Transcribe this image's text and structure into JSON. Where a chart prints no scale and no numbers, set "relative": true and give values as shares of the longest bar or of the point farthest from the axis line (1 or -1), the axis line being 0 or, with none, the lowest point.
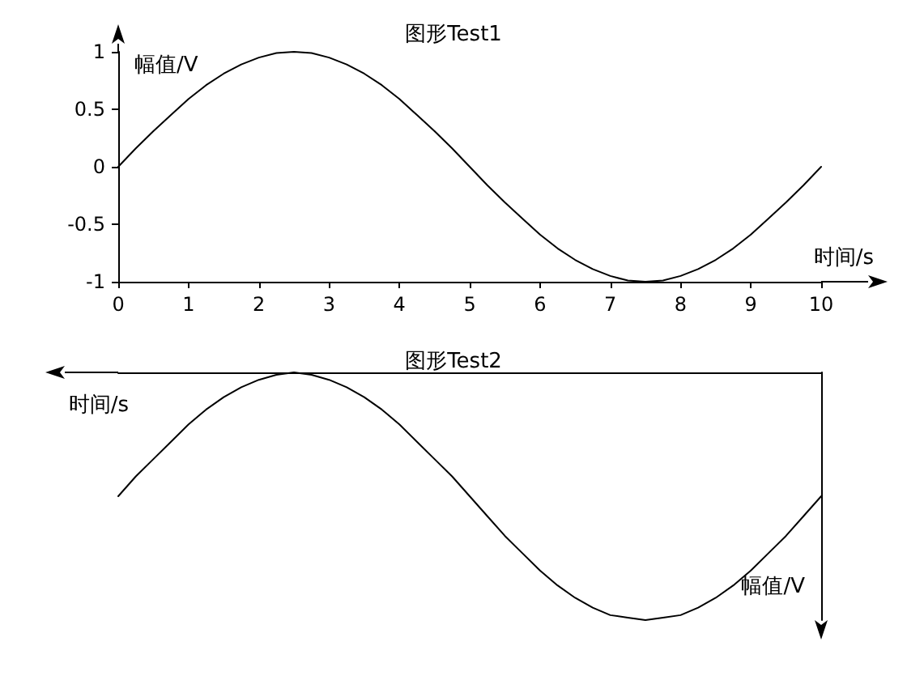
{
  "chart_data": [
    {
      "type": "line",
      "title": "图形Test1",
      "xlabel": "时间/s",
      "ylabel": "幅值/V",
      "color": "#000000",
      "marker": "none",
      "x": [
        0,
        0.25,
        0.5,
        0.75,
        1,
        1.25,
        1.5,
        1.75,
        2,
        2.25,
        2.5,
        2.75,
        3,
        3.25,
        3.5,
        3.75,
        4,
        4.25,
        4.5,
        4.75,
        5,
        5.25,
        5.5,
        5.75,
        6,
        6.25,
        6.5,
        6.75,
        7,
        7.25,
        7.5,
        7.75,
        8,
        8.25,
        8.5,
        8.75,
        9,
        9.25,
        9.5,
        9.75,
        10
      ],
      "values": [
        0,
        0.16,
        0.31,
        0.45,
        0.59,
        0.71,
        0.81,
        0.89,
        0.95,
        0.99,
        1,
        0.99,
        0.95,
        0.89,
        0.81,
        0.71,
        0.59,
        0.45,
        0.31,
        0.16,
        0,
        -0.16,
        -0.31,
        -0.45,
        -0.59,
        -0.71,
        -0.81,
        -0.89,
        -0.95,
        -0.99,
        -1,
        -0.99,
        -0.95,
        -0.89,
        -0.81,
        -0.71,
        -0.59,
        -0.45,
        -0.31,
        -0.16,
        0
      ],
      "xlim": [
        0,
        10
      ],
      "ylim": [
        -1,
        1
      ],
      "xticks": [
        0,
        1,
        2,
        3,
        4,
        5,
        6,
        7,
        8,
        9,
        10
      ],
      "yticks": [
        -1,
        -0.5,
        0,
        0.5,
        1
      ]
    },
    {
      "type": "line",
      "title": "图形Test2",
      "xlabel": "时间/s",
      "ylabel": "幅值/V",
      "color": "#000000",
      "marker": "none",
      "relative": true,
      "categories": [
        null,
        null,
        null,
        null,
        null,
        null,
        null,
        null,
        null,
        null,
        null,
        null,
        null,
        null,
        null,
        null,
        null,
        null,
        null,
        null,
        null,
        null,
        null,
        null,
        null,
        null,
        null,
        null,
        null,
        null,
        null,
        null,
        null,
        null,
        null,
        null,
        null,
        null,
        null,
        null,
        null
      ],
      "values": [
        -0.5,
        -0.42,
        -0.35,
        -0.28,
        -0.21,
        -0.15,
        -0.1,
        -0.06,
        -0.03,
        -0.01,
        0,
        -0.01,
        -0.03,
        -0.06,
        -0.1,
        -0.15,
        -0.21,
        -0.28,
        -0.35,
        -0.42,
        -0.5,
        -0.58,
        -0.66,
        -0.73,
        -0.8,
        -0.86,
        -0.91,
        -0.95,
        -0.98,
        -0.99,
        -1,
        -0.99,
        -0.98,
        -0.95,
        -0.91,
        -0.86,
        -0.8,
        -0.73,
        -0.66,
        -0.58,
        -0.5
      ]
    }
  ]
}
